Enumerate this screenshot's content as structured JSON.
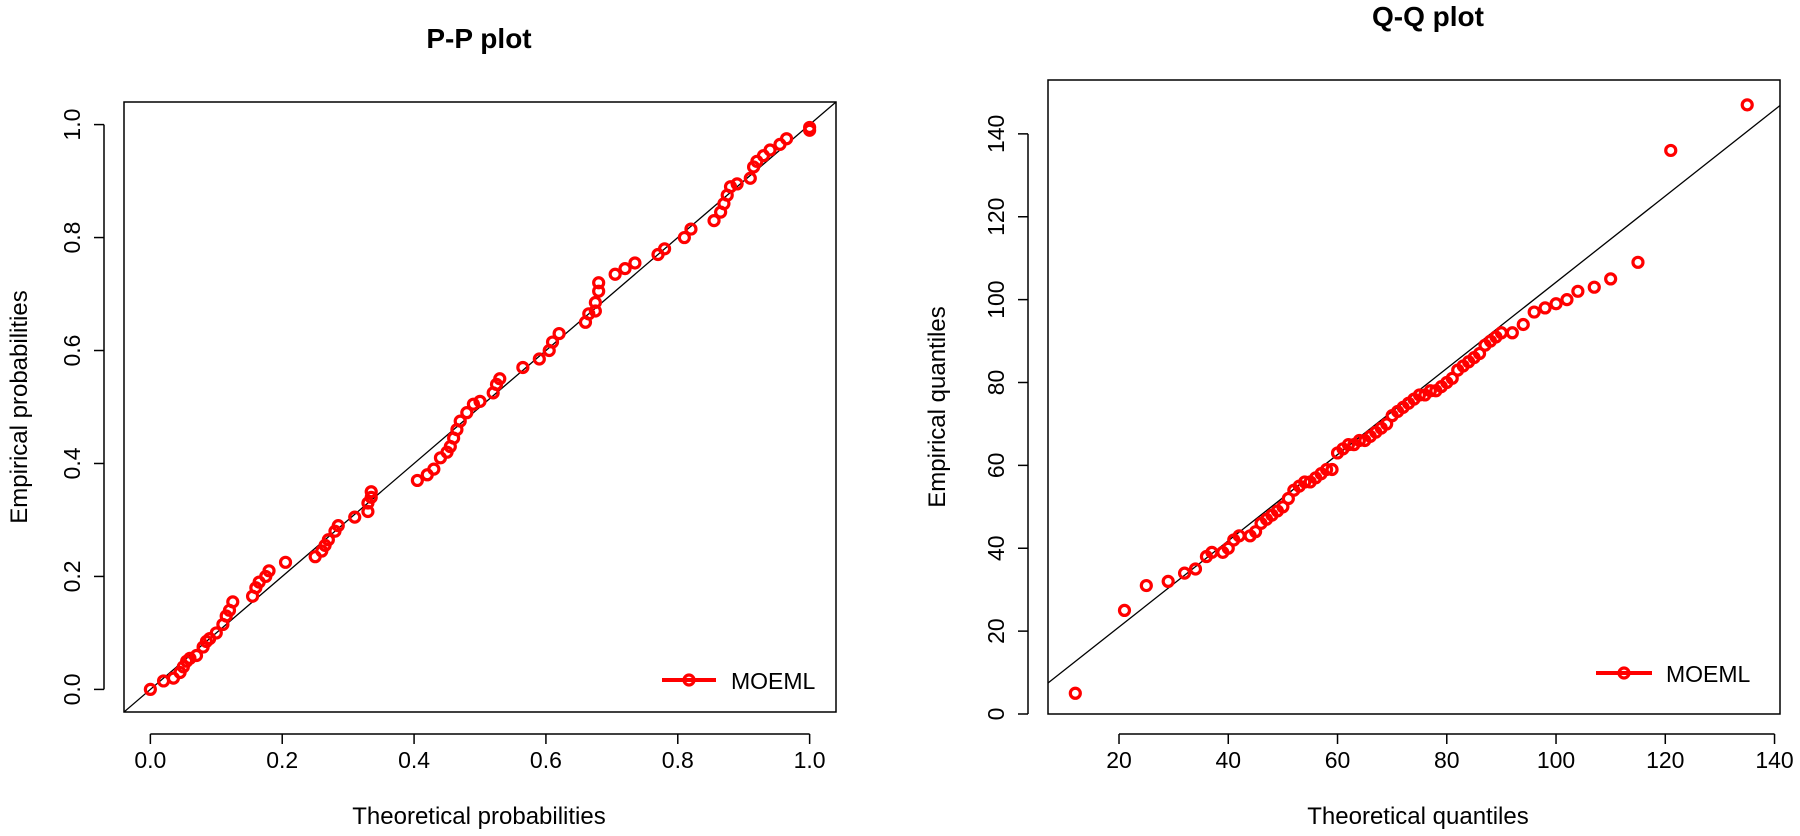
{
  "chart_data": [
    {
      "type": "scatter",
      "title": "P-P plot",
      "xlabel": "Theoretical probabilities",
      "ylabel": "Empirical probabilities",
      "xlim": [
        -0.04,
        1.04
      ],
      "ylim": [
        -0.04,
        1.04
      ],
      "xticks": [
        "0.0",
        "0.2",
        "0.4",
        "0.6",
        "0.8",
        "1.0"
      ],
      "yticks": [
        "0.0",
        "0.2",
        "0.4",
        "0.6",
        "0.8",
        "1.0"
      ],
      "reference_line": {
        "intercept": 0,
        "slope": 1
      },
      "legend": {
        "label": "MOEML",
        "position": "bottom-right"
      },
      "series": [
        {
          "name": "MOEML",
          "color": "#ff0000",
          "x": [
            0.0,
            0.02,
            0.035,
            0.045,
            0.05,
            0.055,
            0.06,
            0.07,
            0.08,
            0.085,
            0.09,
            0.1,
            0.11,
            0.115,
            0.12,
            0.125,
            0.155,
            0.16,
            0.165,
            0.175,
            0.18,
            0.205,
            0.25,
            0.26,
            0.265,
            0.27,
            0.28,
            0.285,
            0.31,
            0.33,
            0.33,
            0.335,
            0.335,
            0.405,
            0.42,
            0.43,
            0.44,
            0.45,
            0.455,
            0.46,
            0.465,
            0.47,
            0.48,
            0.49,
            0.5,
            0.52,
            0.525,
            0.53,
            0.565,
            0.59,
            0.605,
            0.61,
            0.62,
            0.66,
            0.665,
            0.675,
            0.675,
            0.68,
            0.68,
            0.705,
            0.72,
            0.735,
            0.77,
            0.78,
            0.81,
            0.82,
            0.855,
            0.865,
            0.87,
            0.875,
            0.88,
            0.89,
            0.91,
            0.915,
            0.92,
            0.93,
            0.94,
            0.955,
            0.965,
            1.0,
            1.0
          ],
          "y": [
            0.0,
            0.015,
            0.02,
            0.03,
            0.04,
            0.05,
            0.055,
            0.06,
            0.075,
            0.085,
            0.09,
            0.1,
            0.115,
            0.13,
            0.14,
            0.155,
            0.165,
            0.18,
            0.19,
            0.2,
            0.21,
            0.225,
            0.235,
            0.245,
            0.255,
            0.265,
            0.28,
            0.29,
            0.305,
            0.315,
            0.33,
            0.34,
            0.35,
            0.37,
            0.38,
            0.39,
            0.41,
            0.42,
            0.43,
            0.445,
            0.46,
            0.475,
            0.49,
            0.505,
            0.51,
            0.525,
            0.54,
            0.55,
            0.57,
            0.585,
            0.6,
            0.615,
            0.63,
            0.65,
            0.665,
            0.67,
            0.685,
            0.705,
            0.72,
            0.735,
            0.745,
            0.755,
            0.77,
            0.78,
            0.8,
            0.815,
            0.83,
            0.845,
            0.86,
            0.875,
            0.89,
            0.895,
            0.905,
            0.925,
            0.935,
            0.945,
            0.955,
            0.965,
            0.975,
            0.99,
            0.995
          ]
        }
      ]
    },
    {
      "type": "scatter",
      "title": "Q-Q plot",
      "xlabel": "Theoretical quantiles",
      "ylabel": "Empirical quantiles",
      "xlim": [
        7,
        141
      ],
      "ylim": [
        0,
        153
      ],
      "xticks": [
        "20",
        "40",
        "60",
        "80",
        "100",
        "120",
        "140"
      ],
      "yticks": [
        "0",
        "20",
        "40",
        "60",
        "80",
        "100",
        "120",
        "140"
      ],
      "reference_line": {
        "intercept": 0.2,
        "slope": 1.04
      },
      "legend": {
        "label": "MOEML",
        "position": "bottom-right"
      },
      "series": [
        {
          "name": "MOEML",
          "color": "#ff0000",
          "x": [
            12,
            21,
            25,
            29,
            32,
            34,
            36,
            37,
            39,
            40,
            41,
            42,
            44,
            45,
            46,
            47,
            48,
            49,
            50,
            51,
            52,
            53,
            54,
            55,
            56,
            57,
            58,
            59,
            60,
            61,
            62,
            63,
            64,
            65,
            66,
            67,
            68,
            69,
            70,
            71,
            72,
            73,
            74,
            75,
            76,
            77,
            78,
            79,
            80,
            81,
            82,
            83,
            84,
            85,
            86,
            87,
            88,
            89,
            90,
            92,
            94,
            96,
            98,
            100,
            102,
            104,
            107,
            110,
            115,
            121,
            135
          ],
          "y": [
            5,
            25,
            31,
            32,
            34,
            35,
            38,
            39,
            39,
            40,
            42,
            43,
            43,
            44,
            46,
            47,
            48,
            49,
            50,
            52,
            54,
            55,
            56,
            56,
            57,
            58,
            59,
            59,
            63,
            64,
            65,
            65,
            66,
            66,
            67,
            68,
            69,
            70,
            72,
            73,
            74,
            75,
            76,
            77,
            77,
            78,
            78,
            79,
            80,
            81,
            83,
            84,
            85,
            86,
            87,
            89,
            90,
            91,
            92,
            92,
            94,
            97,
            98,
            99,
            100,
            102,
            103,
            105,
            109,
            136,
            147
          ]
        }
      ]
    }
  ]
}
